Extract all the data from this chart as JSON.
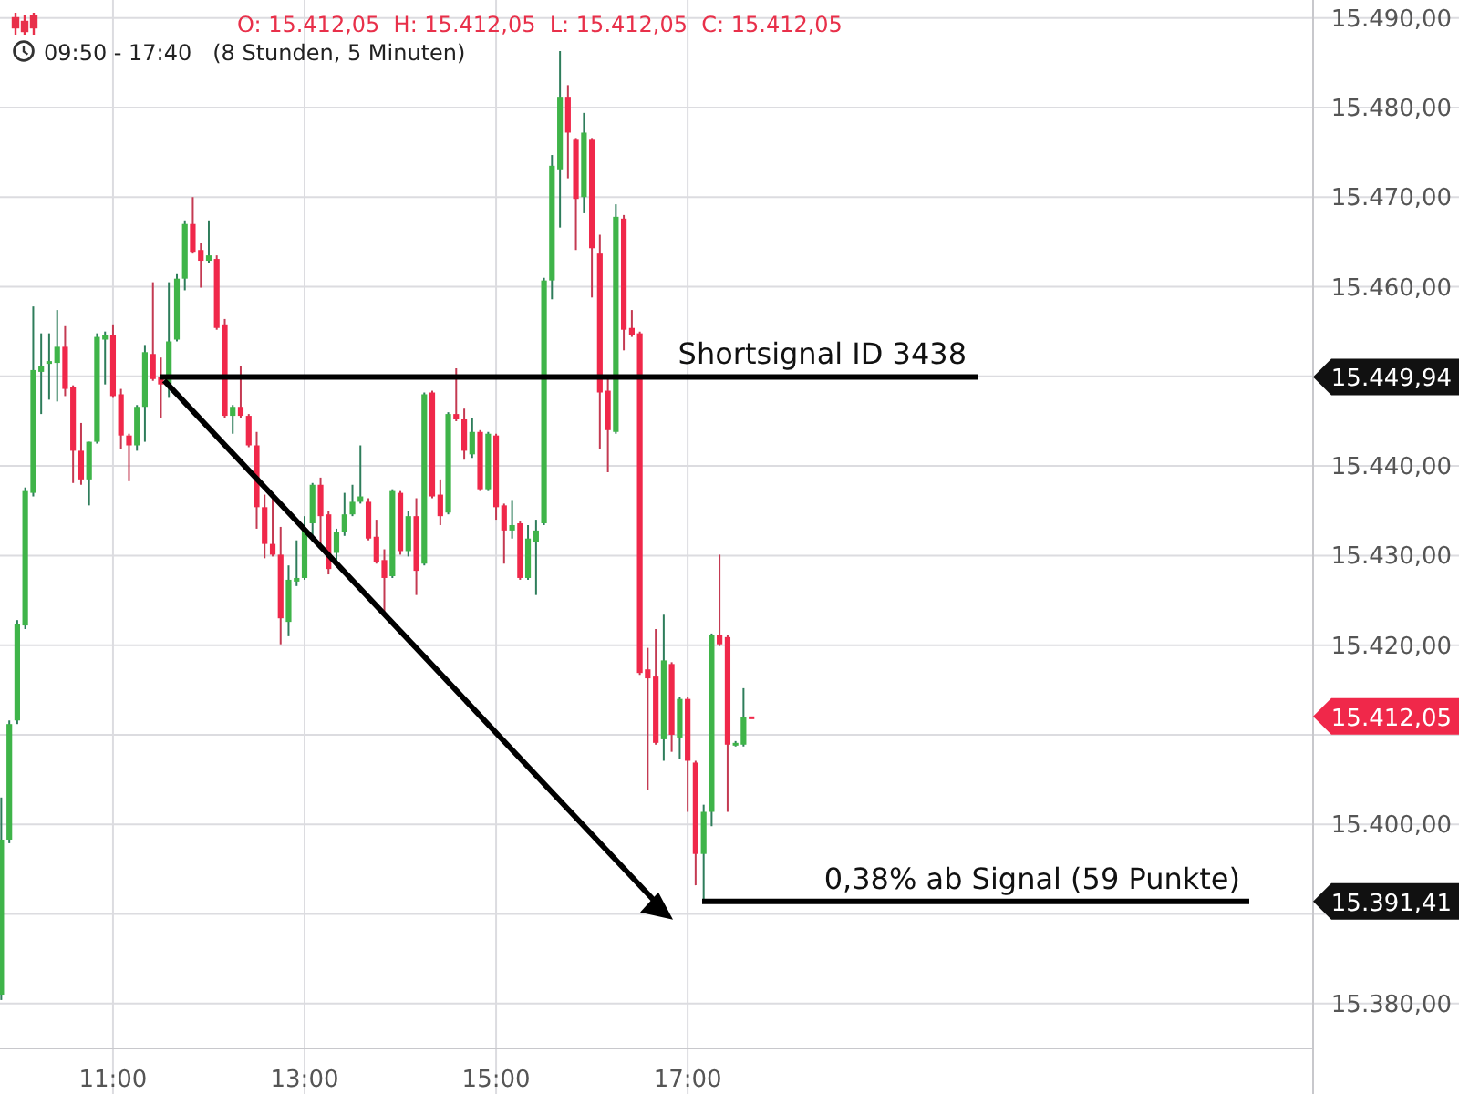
{
  "chart_data": {
    "type": "candlestick",
    "title": "O: 15.412,05  H: 15.412,05  L: 15.412,05  C: 15.412,05",
    "subtitle": "09:50 - 17:40   (8 Stunden, 5 Minuten)",
    "x": [
      9.833,
      9.917,
      10,
      10.083,
      10.167,
      10.25,
      10.333,
      10.417,
      10.5,
      10.583,
      10.667,
      10.75,
      10.833,
      10.917,
      11,
      11.083,
      11.167,
      11.25,
      11.333,
      11.417,
      11.5,
      11.583,
      11.667,
      11.75,
      11.833,
      11.917,
      12,
      12.083,
      12.167,
      12.25,
      12.333,
      12.417,
      12.5,
      12.583,
      12.667,
      12.75,
      12.833,
      12.917,
      13,
      13.083,
      13.167,
      13.25,
      13.333,
      13.417,
      13.5,
      13.583,
      13.667,
      13.75,
      13.833,
      13.917,
      14,
      14.083,
      14.167,
      14.25,
      14.333,
      14.417,
      14.5,
      14.583,
      14.667,
      14.75,
      14.833,
      14.917,
      15,
      15.083,
      15.167,
      15.25,
      15.333,
      15.417,
      15.5,
      15.583,
      15.667,
      15.75,
      15.833,
      15.917,
      16,
      16.083,
      16.167,
      16.25,
      16.333,
      16.417,
      16.5,
      16.583,
      16.667,
      16.75,
      16.833,
      16.917,
      17,
      17.083,
      17.167,
      17.25,
      17.333,
      17.417,
      17.5,
      17.583,
      17.667
    ],
    "ohlc": [
      [
        15381.0,
        15403.0,
        15380.4,
        15398.3
      ],
      [
        15398.3,
        15411.6,
        15397.9,
        15411.2
      ],
      [
        15411.6,
        15422.8,
        15411.2,
        15422.4
      ],
      [
        15422.2,
        15437.6,
        15421.8,
        15437.2
      ],
      [
        15437.0,
        15457.8,
        15436.6,
        15450.7
      ],
      [
        15450.5,
        15454.8,
        15445.8,
        15451.1
      ],
      [
        15451.5,
        15454.8,
        15447.4,
        15451.7
      ],
      [
        15451.5,
        15457.4,
        15447.2,
        15453.3
      ],
      [
        15453.3,
        15455.6,
        15447.8,
        15448.6
      ],
      [
        15448.8,
        15449.0,
        15438.1,
        15441.7
      ],
      [
        15441.7,
        15444.8,
        15437.9,
        15438.5
      ],
      [
        15438.5,
        15442.7,
        15435.6,
        15442.7
      ],
      [
        15442.7,
        15454.8,
        15442.5,
        15454.4
      ],
      [
        15454.1,
        15455.0,
        15449.1,
        15454.6
      ],
      [
        15454.6,
        15455.8,
        15447.6,
        15447.8
      ],
      [
        15448.0,
        15448.6,
        15441.9,
        15443.4
      ],
      [
        15443.4,
        15443.6,
        15438.3,
        15442.3
      ],
      [
        15442.3,
        15446.8,
        15441.7,
        15446.6
      ],
      [
        15446.6,
        15453.5,
        15442.7,
        15452.7
      ],
      [
        15452.5,
        15460.5,
        15449.5,
        15449.7
      ],
      [
        15449.9,
        15452.1,
        15445.4,
        15449.1
      ],
      [
        15449.1,
        15460.5,
        15447.6,
        15453.9
      ],
      [
        15454.1,
        15461.5,
        15453.9,
        15460.9
      ],
      [
        15460.9,
        15467.4,
        15459.6,
        15467.0
      ],
      [
        15467.0,
        15470.0,
        15463.7,
        15463.9
      ],
      [
        15464.1,
        15464.9,
        15459.9,
        15462.9
      ],
      [
        15462.9,
        15467.4,
        15462.7,
        15463.5
      ],
      [
        15463.1,
        15463.5,
        15455.2,
        15455.4
      ],
      [
        15455.8,
        15456.4,
        15445.4,
        15445.6
      ],
      [
        15445.6,
        15446.8,
        15443.6,
        15446.6
      ],
      [
        15446.6,
        15451.1,
        15445.4,
        15445.6
      ],
      [
        15445.6,
        15445.8,
        15442.1,
        15442.3
      ],
      [
        15442.3,
        15443.8,
        15433.0,
        15435.4
      ],
      [
        15435.4,
        15436.8,
        15429.7,
        15431.3
      ],
      [
        15431.3,
        15436.4,
        15429.9,
        15430.1
      ],
      [
        15430.1,
        15433.2,
        15420.1,
        15423.0
      ],
      [
        15422.6,
        15428.9,
        15421.0,
        15427.3
      ],
      [
        15427.1,
        15431.7,
        15426.6,
        15427.5
      ],
      [
        15427.5,
        15434.4,
        15427.3,
        15433.0
      ],
      [
        15433.6,
        15438.1,
        15431.5,
        15437.9
      ],
      [
        15437.9,
        15438.7,
        15430.9,
        15434.4
      ],
      [
        15434.6,
        15435.0,
        15427.9,
        15428.5
      ],
      [
        15430.3,
        15433.0,
        15428.9,
        15432.6
      ],
      [
        15432.6,
        15437.0,
        15432.2,
        15434.6
      ],
      [
        15434.6,
        15437.9,
        15434.4,
        15436.0
      ],
      [
        15436.0,
        15442.3,
        15435.8,
        15436.6
      ],
      [
        15436.0,
        15436.4,
        15431.7,
        15431.9
      ],
      [
        15432.1,
        15434.0,
        15429.1,
        15429.3
      ],
      [
        15429.5,
        15430.7,
        15423.4,
        15427.5
      ],
      [
        15427.7,
        15437.4,
        15427.5,
        15437.2
      ],
      [
        15437.0,
        15437.2,
        15430.1,
        15430.5
      ],
      [
        15430.5,
        15435.0,
        15429.9,
        15434.4
      ],
      [
        15434.4,
        15436.4,
        15425.6,
        15428.3
      ],
      [
        15429.1,
        15448.2,
        15428.9,
        15448.0
      ],
      [
        15448.2,
        15448.4,
        15436.4,
        15436.6
      ],
      [
        15436.8,
        15438.5,
        15433.4,
        15434.4
      ],
      [
        15434.8,
        15446.0,
        15434.6,
        15445.8
      ],
      [
        15445.8,
        15450.9,
        15445.0,
        15445.2
      ],
      [
        15445.2,
        15446.4,
        15440.7,
        15441.7
      ],
      [
        15441.3,
        15445.4,
        15440.9,
        15443.8
      ],
      [
        15443.8,
        15444.0,
        15437.2,
        15437.4
      ],
      [
        15437.4,
        15443.8,
        15437.2,
        15443.6
      ],
      [
        15443.4,
        15443.6,
        15434.0,
        15435.4
      ],
      [
        15435.6,
        15435.8,
        15429.1,
        15432.8
      ],
      [
        15432.8,
        15436.2,
        15431.9,
        15433.4
      ],
      [
        15433.6,
        15433.8,
        15427.3,
        15427.5
      ],
      [
        15427.5,
        15433.4,
        15427.3,
        15431.9
      ],
      [
        15431.5,
        15434.0,
        15425.6,
        15432.8
      ],
      [
        15433.6,
        15461.0,
        15433.4,
        15460.7
      ],
      [
        15460.7,
        15474.7,
        15458.6,
        15473.5
      ],
      [
        15473.1,
        15486.3,
        15466.6,
        15481.2
      ],
      [
        15481.2,
        15482.5,
        15472.1,
        15477.2
      ],
      [
        15476.4,
        15476.6,
        15464.1,
        15469.8
      ],
      [
        15470.0,
        15479.4,
        15468.2,
        15477.2
      ],
      [
        15476.4,
        15476.6,
        15458.8,
        15464.3
      ],
      [
        15463.7,
        15465.8,
        15441.9,
        15448.2
      ],
      [
        15448.4,
        15449.7,
        15439.3,
        15444.0
      ],
      [
        15443.8,
        15469.2,
        15443.6,
        15467.8
      ],
      [
        15467.6,
        15468.0,
        15452.9,
        15455.2
      ],
      [
        15455.4,
        15457.4,
        15454.4,
        15454.6
      ],
      [
        15454.8,
        15455.0,
        15416.7,
        15416.9
      ],
      [
        15417.3,
        15419.7,
        15403.8,
        15416.3
      ],
      [
        15416.5,
        15421.8,
        15408.9,
        15409.1
      ],
      [
        15409.5,
        15423.4,
        15407.1,
        15418.3
      ],
      [
        15417.9,
        15418.1,
        15408.1,
        15410.0
      ],
      [
        15409.7,
        15414.2,
        15407.3,
        15414.0
      ],
      [
        15414.0,
        15414.2,
        15401.4,
        15407.1
      ],
      [
        15406.9,
        15407.1,
        15393.2,
        15396.7
      ],
      [
        15396.7,
        15402.2,
        15391.4,
        15401.4
      ],
      [
        15401.4,
        15421.3,
        15399.8,
        15421.1
      ],
      [
        15421.1,
        15430.1,
        15419.9,
        15420.1
      ],
      [
        15420.9,
        15421.1,
        15401.4,
        15408.9
      ],
      [
        15408.9,
        15409.3,
        15408.7,
        15409.1
      ],
      [
        15408.9,
        15415.2,
        15408.7,
        15412.0
      ],
      [
        15412.05,
        15412.05,
        15412.05,
        15412.05
      ]
    ],
    "xlim": [
      9.82,
      23.53
    ],
    "xticks": [
      {
        "value": 11,
        "label": "11:00"
      },
      {
        "value": 13,
        "label": "13:00"
      },
      {
        "value": 15,
        "label": "15:00"
      },
      {
        "value": 17,
        "label": "17:00"
      }
    ],
    "ylim": [
      15375,
      15492
    ],
    "yticks": [
      {
        "value": 15380,
        "label": "15.380,00"
      },
      {
        "value": 15390,
        "label": null
      },
      {
        "value": 15400,
        "label": "15.400,00"
      },
      {
        "value": 15410,
        "label": null
      },
      {
        "value": 15420,
        "label": "15.420,00"
      },
      {
        "value": 15430,
        "label": "15.430,00"
      },
      {
        "value": 15440,
        "label": "15.440,00"
      },
      {
        "value": 15450,
        "label": null
      },
      {
        "value": 15460,
        "label": "15.460,00"
      },
      {
        "value": 15470,
        "label": "15.470,00"
      },
      {
        "value": 15480,
        "label": "15.480,00"
      },
      {
        "value": 15490,
        "label": "15.490,00"
      }
    ],
    "ref_lines": [
      {
        "axis": "y",
        "value": 15449.94,
        "label": "Shortsignal ID 3438",
        "color": "#000000"
      },
      {
        "axis": "y",
        "value": 15391.41,
        "label": "0,38% ab Signal (59 Punkte)",
        "color": "#000000"
      }
    ],
    "annotations": [
      "15.449,94",
      "15.412,05",
      "15.391,41"
    ],
    "grid": true
  }
}
